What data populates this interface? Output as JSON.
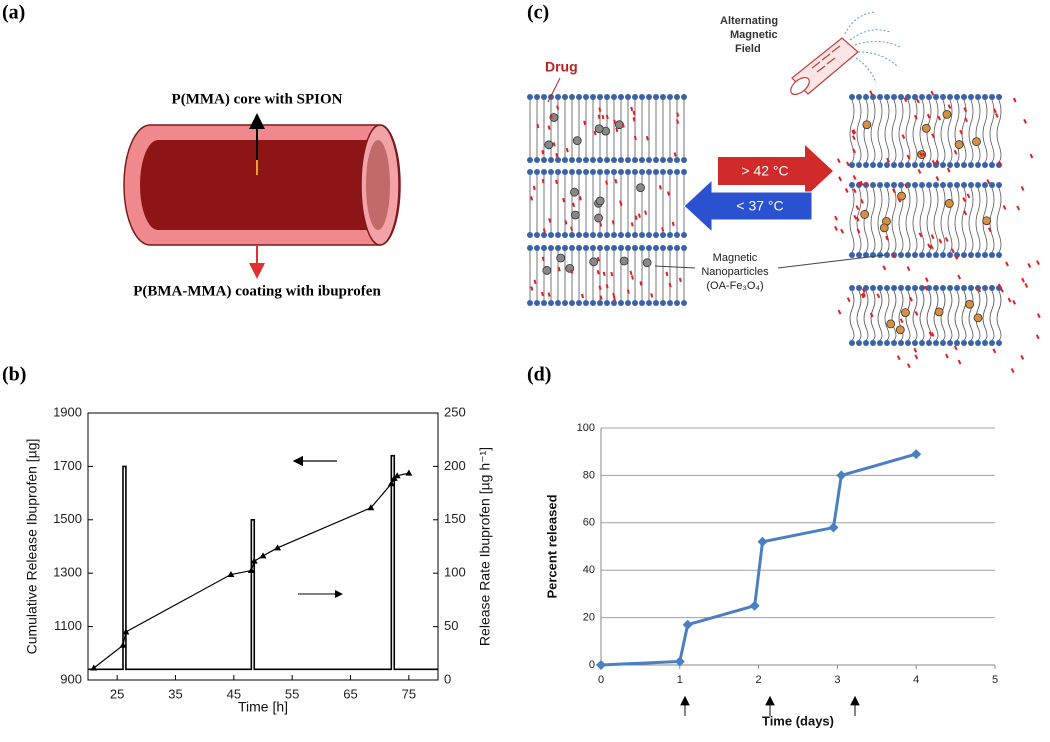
{
  "panel_labels": [
    "(a)",
    "(b)",
    "(c)",
    "(d)"
  ],
  "diagram_a": {
    "core_label": "P(MMA) core with SPION",
    "coating_label": "P(BMA-MMA) coating with ibuprofen"
  },
  "diagram_c": {
    "drug_label": "Drug",
    "field_label": [
      "Alternating",
      "Magnetic",
      "Field"
    ],
    "heat_label": "> 42 °C",
    "cool_label": "< 37 °C",
    "particle_label": [
      "Magnetic",
      "Nanoparticles",
      "(OA-Fe₃O₄)"
    ]
  },
  "chart_data": [
    {
      "type": "line",
      "xlabel": "Time [h]",
      "ylabel": "Cumulative Release Ibuprofen [µg]",
      "y2label": "Release Rate Ibuprofen [µg h⁻¹]",
      "xlim": [
        20,
        80
      ],
      "xticks": [
        25,
        35,
        45,
        55,
        65,
        75
      ],
      "ylim": [
        900,
        1900
      ],
      "yticks": [
        900,
        1100,
        1300,
        1500,
        1700,
        1900
      ],
      "y2lim": [
        0,
        250
      ],
      "y2ticks": [
        0,
        50,
        100,
        150,
        200,
        250
      ],
      "frame": true,
      "series": [
        {
          "color": "#000000",
          "marker": "triangle",
          "x": [
            21,
            26,
            26.5,
            44.5,
            48,
            48.5,
            50,
            52.5,
            68.5,
            72,
            72.5,
            73,
            75
          ],
          "values": [
            945,
            1030,
            1080,
            1295,
            1310,
            1345,
            1365,
            1395,
            1545,
            1635,
            1655,
            1665,
            1675
          ]
        },
        {
          "color": "#000000",
          "axis": "y2",
          "x": [
            20,
            26,
            26,
            26.5,
            26.5,
            48,
            48,
            48.5,
            48.5,
            72,
            72,
            72.5,
            72.5,
            80
          ],
          "values": [
            10,
            10,
            200,
            200,
            10,
            10,
            150,
            150,
            10,
            10,
            210,
            210,
            10,
            10
          ]
        }
      ]
    },
    {
      "type": "line",
      "xlabel": "Time (days)",
      "ylabel": "Percent released",
      "xlim": [
        0,
        5
      ],
      "xticks": [
        0,
        1,
        2,
        3,
        4,
        5
      ],
      "ylim": [
        0,
        100
      ],
      "yticks": [
        0,
        20,
        40,
        60,
        80,
        100
      ],
      "grid": true,
      "series": [
        {
          "color": "#4a7fc1",
          "marker": "diamond",
          "x": [
            0,
            1,
            1.1,
            1.95,
            2.05,
            2.95,
            3.05,
            4
          ],
          "values": [
            0,
            1.5,
            17,
            25,
            52,
            58,
            80,
            89
          ]
        }
      ]
    }
  ]
}
